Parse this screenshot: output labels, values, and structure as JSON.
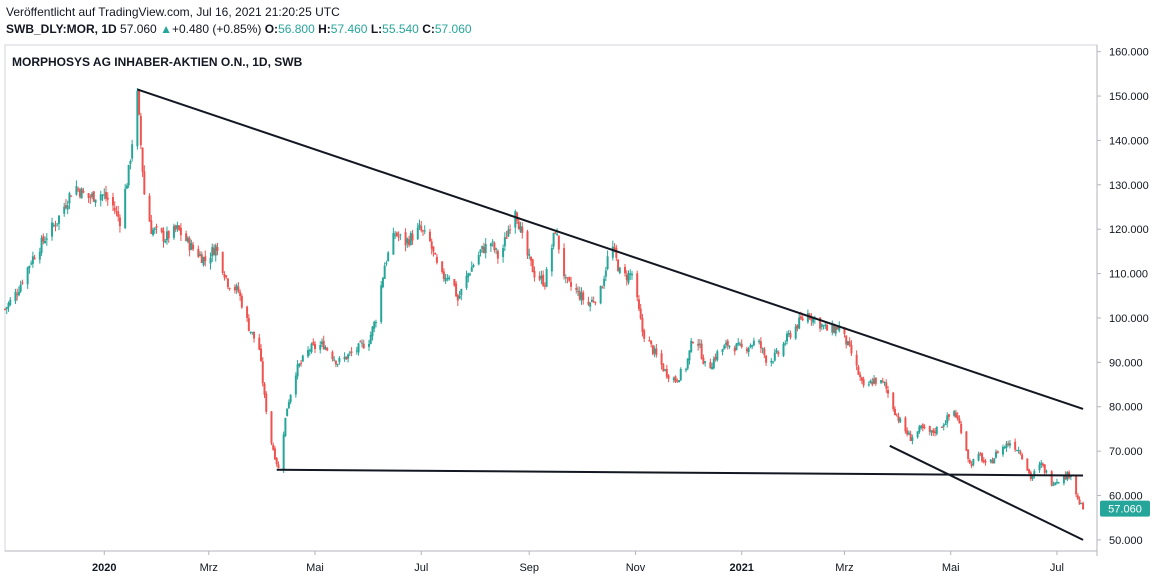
{
  "header": {
    "published": "Veröffentlicht auf TradingView.com, Jul 16, 2021 21:20:25 UTC",
    "symbol": "SWB_DLY:MOR, 1D",
    "last": "57.060",
    "change_arrow": "▲",
    "change": "+0.480 (+0.85%)",
    "o_label": "O:",
    "o_value": "56.800",
    "h_label": "H:",
    "h_value": "57.460",
    "l_label": "L:",
    "l_value": "55.540",
    "c_label": "C:",
    "c_value": "57.060"
  },
  "colors": {
    "up": "#26a69a",
    "down": "#ef5350",
    "line": "#131722",
    "grid": "#e0e3eb",
    "price_tag": "#26a69a"
  },
  "chart_data": {
    "type": "candlestick",
    "title": "MORPHOSYS AG INHABER-AKTIEN O.N., 1D, SWB",
    "y_ticks": [
      "50.000",
      "60.000",
      "70.000",
      "80.000",
      "90.000",
      "100.000",
      "110.000",
      "120.000",
      "130.000",
      "140.000",
      "150.000",
      "160.000"
    ],
    "ylim": [
      47.5,
      161.5
    ],
    "x_ticks": [
      {
        "label": "2020",
        "date": "2020-01-01",
        "bold": true
      },
      {
        "label": "Mrz",
        "date": "2020-03-01",
        "bold": false
      },
      {
        "label": "Mai",
        "date": "2020-05-01",
        "bold": false
      },
      {
        "label": "Jul",
        "date": "2020-07-01",
        "bold": false
      },
      {
        "label": "Sep",
        "date": "2020-09-01",
        "bold": false
      },
      {
        "label": "Nov",
        "date": "2020-11-01",
        "bold": false
      },
      {
        "label": "2021",
        "date": "2021-01-01",
        "bold": true
      },
      {
        "label": "Mrz",
        "date": "2021-03-01",
        "bold": false
      },
      {
        "label": "Mai",
        "date": "2021-05-01",
        "bold": false
      },
      {
        "label": "Jul",
        "date": "2021-07-01",
        "bold": false
      }
    ],
    "xlim": [
      "2019-11-05",
      "2021-07-24"
    ],
    "last_price_label": "57.060",
    "last_price": 57.06,
    "price_path": [
      [
        "2019-11-05",
        102
      ],
      [
        "2019-11-12",
        106
      ],
      [
        "2019-11-20",
        113
      ],
      [
        "2019-11-28",
        118
      ],
      [
        "2019-12-05",
        122
      ],
      [
        "2019-12-10",
        126
      ],
      [
        "2019-12-15",
        130
      ],
      [
        "2019-12-22",
        127
      ],
      [
        "2019-12-30",
        128
      ],
      [
        "2020-01-05",
        126
      ],
      [
        "2020-01-10",
        122
      ],
      [
        "2020-01-15",
        133
      ],
      [
        "2020-01-20",
        150
      ],
      [
        "2020-01-24",
        128
      ],
      [
        "2020-01-28",
        120
      ],
      [
        "2020-02-05",
        118
      ],
      [
        "2020-02-12",
        120
      ],
      [
        "2020-02-20",
        116
      ],
      [
        "2020-02-28",
        113
      ],
      [
        "2020-03-05",
        116
      ],
      [
        "2020-03-12",
        108
      ],
      [
        "2020-03-18",
        106
      ],
      [
        "2020-03-24",
        98
      ],
      [
        "2020-03-30",
        93
      ],
      [
        "2020-04-02",
        82
      ],
      [
        "2020-04-06",
        72
      ],
      [
        "2020-04-10",
        66
      ],
      [
        "2020-04-15",
        80
      ],
      [
        "2020-04-20",
        88
      ],
      [
        "2020-04-28",
        93
      ],
      [
        "2020-05-06",
        94
      ],
      [
        "2020-05-14",
        90
      ],
      [
        "2020-05-22",
        92
      ],
      [
        "2020-06-01",
        95
      ],
      [
        "2020-06-05",
        100
      ],
      [
        "2020-06-10",
        112
      ],
      [
        "2020-06-16",
        119
      ],
      [
        "2020-06-22",
        117
      ],
      [
        "2020-06-30",
        120
      ],
      [
        "2020-07-06",
        117
      ],
      [
        "2020-07-12",
        109
      ],
      [
        "2020-07-18",
        110
      ],
      [
        "2020-07-22",
        104
      ],
      [
        "2020-07-28",
        110
      ],
      [
        "2020-08-04",
        115
      ],
      [
        "2020-08-10",
        117
      ],
      [
        "2020-08-15",
        113
      ],
      [
        "2020-08-20",
        120
      ],
      [
        "2020-08-24",
        125
      ],
      [
        "2020-08-29",
        116
      ],
      [
        "2020-09-04",
        110
      ],
      [
        "2020-09-10",
        108
      ],
      [
        "2020-09-16",
        120
      ],
      [
        "2020-09-22",
        108
      ],
      [
        "2020-09-28",
        106
      ],
      [
        "2020-10-05",
        103
      ],
      [
        "2020-10-12",
        106
      ],
      [
        "2020-10-18",
        117
      ],
      [
        "2020-10-24",
        109
      ],
      [
        "2020-10-30",
        110
      ],
      [
        "2020-11-05",
        97
      ],
      [
        "2020-11-12",
        92
      ],
      [
        "2020-11-18",
        88
      ],
      [
        "2020-11-24",
        86
      ],
      [
        "2020-11-30",
        89
      ],
      [
        "2020-12-05",
        97
      ],
      [
        "2020-12-12",
        88
      ],
      [
        "2020-12-18",
        92
      ],
      [
        "2020-12-24",
        94
      ],
      [
        "2021-01-02",
        93
      ],
      [
        "2021-01-10",
        95
      ],
      [
        "2021-01-16",
        90
      ],
      [
        "2021-01-22",
        92
      ],
      [
        "2021-01-28",
        96
      ],
      [
        "2021-02-03",
        99
      ],
      [
        "2021-02-08",
        101
      ],
      [
        "2021-02-14",
        99
      ],
      [
        "2021-02-20",
        97
      ],
      [
        "2021-02-26",
        98
      ],
      [
        "2021-03-05",
        92
      ],
      [
        "2021-03-12",
        84
      ],
      [
        "2021-03-18",
        86
      ],
      [
        "2021-03-24",
        85
      ],
      [
        "2021-03-30",
        79
      ],
      [
        "2021-04-04",
        75
      ],
      [
        "2021-04-08",
        73
      ],
      [
        "2021-04-14",
        75
      ],
      [
        "2021-04-20",
        74
      ],
      [
        "2021-04-26",
        76
      ],
      [
        "2021-05-03",
        79
      ],
      [
        "2021-05-08",
        74
      ],
      [
        "2021-05-12",
        67
      ],
      [
        "2021-05-18",
        69
      ],
      [
        "2021-05-22",
        66
      ],
      [
        "2021-05-28",
        70
      ],
      [
        "2021-06-04",
        72
      ],
      [
        "2021-06-10",
        70
      ],
      [
        "2021-06-16",
        64
      ],
      [
        "2021-06-22",
        67
      ],
      [
        "2021-06-28",
        63
      ],
      [
        "2021-07-04",
        64
      ],
      [
        "2021-07-09",
        65
      ],
      [
        "2021-07-13",
        59
      ],
      [
        "2021-07-16",
        57
      ]
    ],
    "trend_lines": [
      {
        "name": "upper-resistance-line",
        "from": [
          "2020-01-20",
          151.5
        ],
        "to": [
          "2021-07-16",
          79.5
        ]
      },
      {
        "name": "horizontal-support-line",
        "from": [
          "2020-04-09",
          65.8
        ],
        "to": [
          "2021-07-16",
          64.5
        ]
      },
      {
        "name": "lower-trend-line",
        "from": [
          "2021-03-27",
          71.2
        ],
        "to": [
          "2021-07-16",
          50
        ]
      }
    ]
  }
}
